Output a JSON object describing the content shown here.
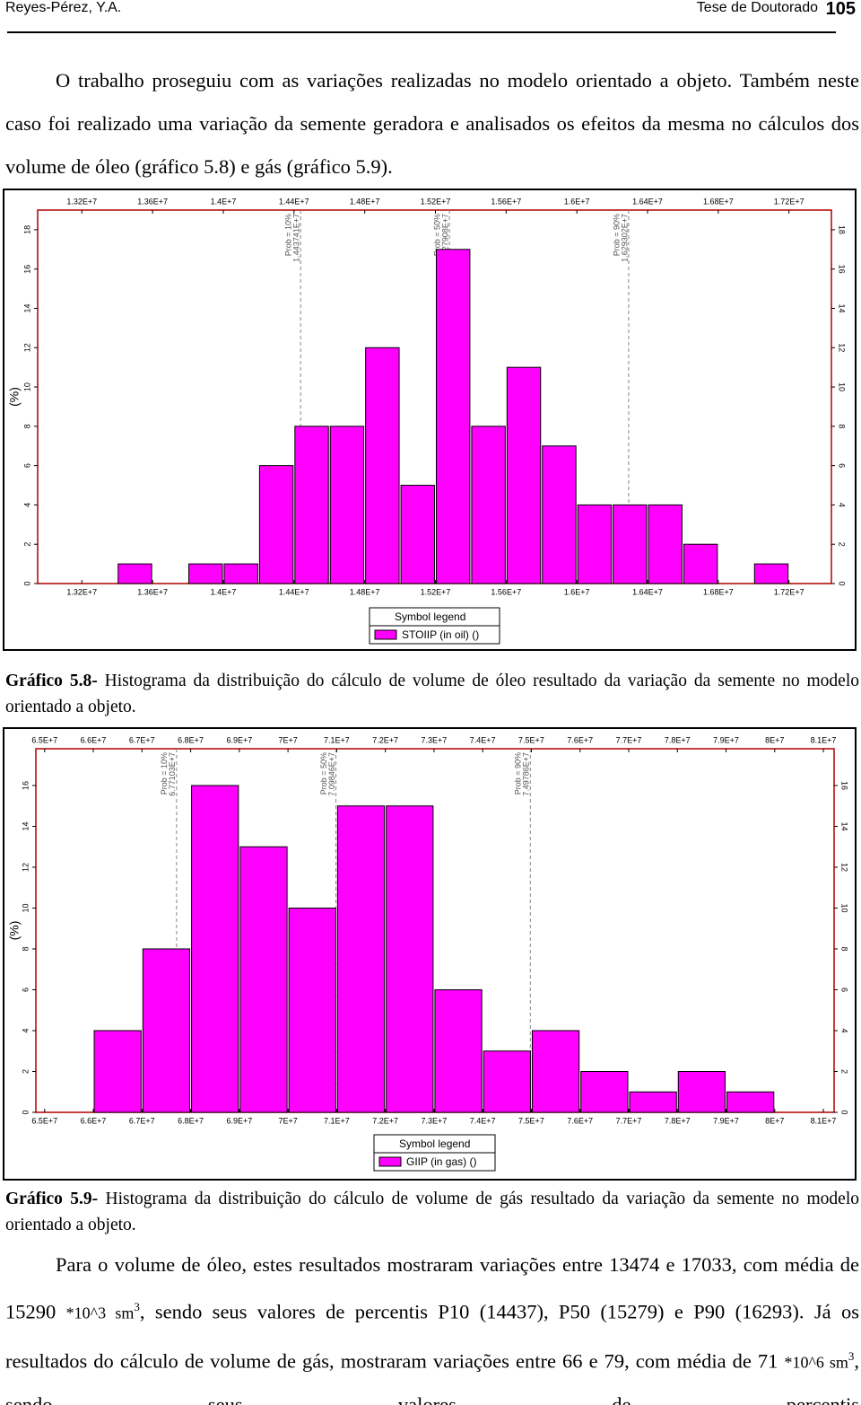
{
  "header": {
    "author": "Reyes-Pérez, Y.A.",
    "title": "Tese de Doutorado",
    "page": "105"
  },
  "intro_paragraph": "O trabalho proseguiu com as variações realizadas no modelo orientado a objeto. Também neste caso foi realizado uma variação da semente geradora e analisados os efeitos da mesma no cálculos dos volume de óleo (gráfico 5.8) e gás (gráfico 5.9).",
  "figures": [
    {
      "chart_data": {
        "type": "histogram",
        "y_label": "(%)",
        "bins": [
          13400000,
          13600000,
          13800000,
          14000000,
          14200000,
          14400000,
          14600000,
          14800000,
          15000000,
          15200000,
          15400000,
          15600000,
          15800000,
          16000000,
          16200000,
          16400000,
          16600000,
          16800000,
          17000000,
          17200000
        ],
        "series": [
          {
            "name": "STOIIP (in oil) ()",
            "color": "#ff00ff",
            "values": [
              1,
              0,
              1,
              1,
              6,
              8,
              8,
              12,
              5,
              17,
              8,
              11,
              7,
              4,
              4,
              4,
              2,
              0,
              1
            ]
          }
        ],
        "xlim": [
          12950000,
          17440000
        ],
        "ylim": [
          0,
          19
        ],
        "xticks": [
          {
            "value": 13200000,
            "label": "1.32E+7"
          },
          {
            "value": 13600000,
            "label": "1.36E+7"
          },
          {
            "value": 14000000,
            "label": "1.4E+7"
          },
          {
            "value": 14400000,
            "label": "1.44E+7"
          },
          {
            "value": 14800000,
            "label": "1.48E+7"
          },
          {
            "value": 15200000,
            "label": "1.52E+7"
          },
          {
            "value": 15600000,
            "label": "1.56E+7"
          },
          {
            "value": 16000000,
            "label": "1.6E+7"
          },
          {
            "value": 16400000,
            "label": "1.64E+7"
          },
          {
            "value": 16800000,
            "label": "1.68E+7"
          },
          {
            "value": 17200000,
            "label": "1.72E+7"
          }
        ],
        "yticks": [
          0,
          2,
          4,
          6,
          8,
          10,
          12,
          14,
          16,
          18
        ],
        "percentiles": [
          {
            "label": "Prob = 10%",
            "value": 14437410,
            "value_label": "1.443741E+7"
          },
          {
            "label": "Prob = 50%",
            "value": 15279080,
            "value_label": "1.527908E+7"
          },
          {
            "label": "Prob = 90%",
            "value": 16293020,
            "value_label": "1.629302E+7"
          }
        ],
        "legend_title": "Symbol legend",
        "legend": "bottom",
        "grid": false
      },
      "caption": {
        "label": "Gráfico 5.8-",
        "text": "Histograma da distribuição do cálculo de volume de óleo resultado da variação da semente no modelo orientado a objeto."
      }
    },
    {
      "chart_data": {
        "type": "histogram",
        "y_label": "(%)",
        "bins": [
          66000000,
          67000000,
          68000000,
          69000000,
          70000000,
          71000000,
          72000000,
          73000000,
          74000000,
          75000000,
          76000000,
          77000000,
          78000000,
          79000000,
          80000000
        ],
        "series": [
          {
            "name": "GIIP (in gas) ()",
            "color": "#ff00ff",
            "values": [
              4,
              8,
              16,
              13,
              10,
              15,
              15,
              6,
              3,
              4,
              2,
              1,
              2,
              1
            ]
          }
        ],
        "xlim": [
          64820000,
          81220000
        ],
        "ylim": [
          0,
          17.8
        ],
        "xticks": [
          {
            "value": 65000000,
            "label": "6.5E+7"
          },
          {
            "value": 66000000,
            "label": "6.6E+7"
          },
          {
            "value": 67000000,
            "label": "6.7E+7"
          },
          {
            "value": 68000000,
            "label": "6.8E+7"
          },
          {
            "value": 69000000,
            "label": "6.9E+7"
          },
          {
            "value": 70000000,
            "label": "7E+7"
          },
          {
            "value": 71000000,
            "label": "7.1E+7"
          },
          {
            "value": 72000000,
            "label": "7.2E+7"
          },
          {
            "value": 73000000,
            "label": "7.3E+7"
          },
          {
            "value": 74000000,
            "label": "7.4E+7"
          },
          {
            "value": 75000000,
            "label": "7.5E+7"
          },
          {
            "value": 76000000,
            "label": "7.6E+7"
          },
          {
            "value": 77000000,
            "label": "7.7E+7"
          },
          {
            "value": 78000000,
            "label": "7.8E+7"
          },
          {
            "value": 79000000,
            "label": "7.9E+7"
          },
          {
            "value": 80000000,
            "label": "8E+7"
          },
          {
            "value": 81000000,
            "label": "8.1E+7"
          }
        ],
        "yticks": [
          0,
          2,
          4,
          6,
          8,
          10,
          12,
          14,
          16
        ],
        "percentiles": [
          {
            "label": "Prob = 10%",
            "value": 67710300,
            "value_label": "6.77103E+7"
          },
          {
            "label": "Prob = 50%",
            "value": 70984600,
            "value_label": "7.09846E+7"
          },
          {
            "label": "Prob = 90%",
            "value": 74978600,
            "value_label": "7.49786E+7"
          }
        ],
        "legend_title": "Symbol legend",
        "legend": "bottom",
        "grid": false
      },
      "caption": {
        "label": "Gráfico 5.9-",
        "text": "Histograma da distribuição do cálculo de volume de gás resultado da variação da semente no modelo orientado a objeto."
      }
    }
  ],
  "closing_paragraph": [
    "Para o volume de óleo, estes resultados mostraram variações entre 13474 e 17033, com média de 15290 ",
    "*10^3 sm",
    "3",
    ", sendo seus valores de percentis P10 (14437), P50 (15279) e P90 (16293). Já os resultados do cálculo de volume de gás, mostraram variações entre 66 e 79, com média de 71 ",
    "*10^6 sm",
    "3",
    ", sendo seus valores de percentis"
  ]
}
